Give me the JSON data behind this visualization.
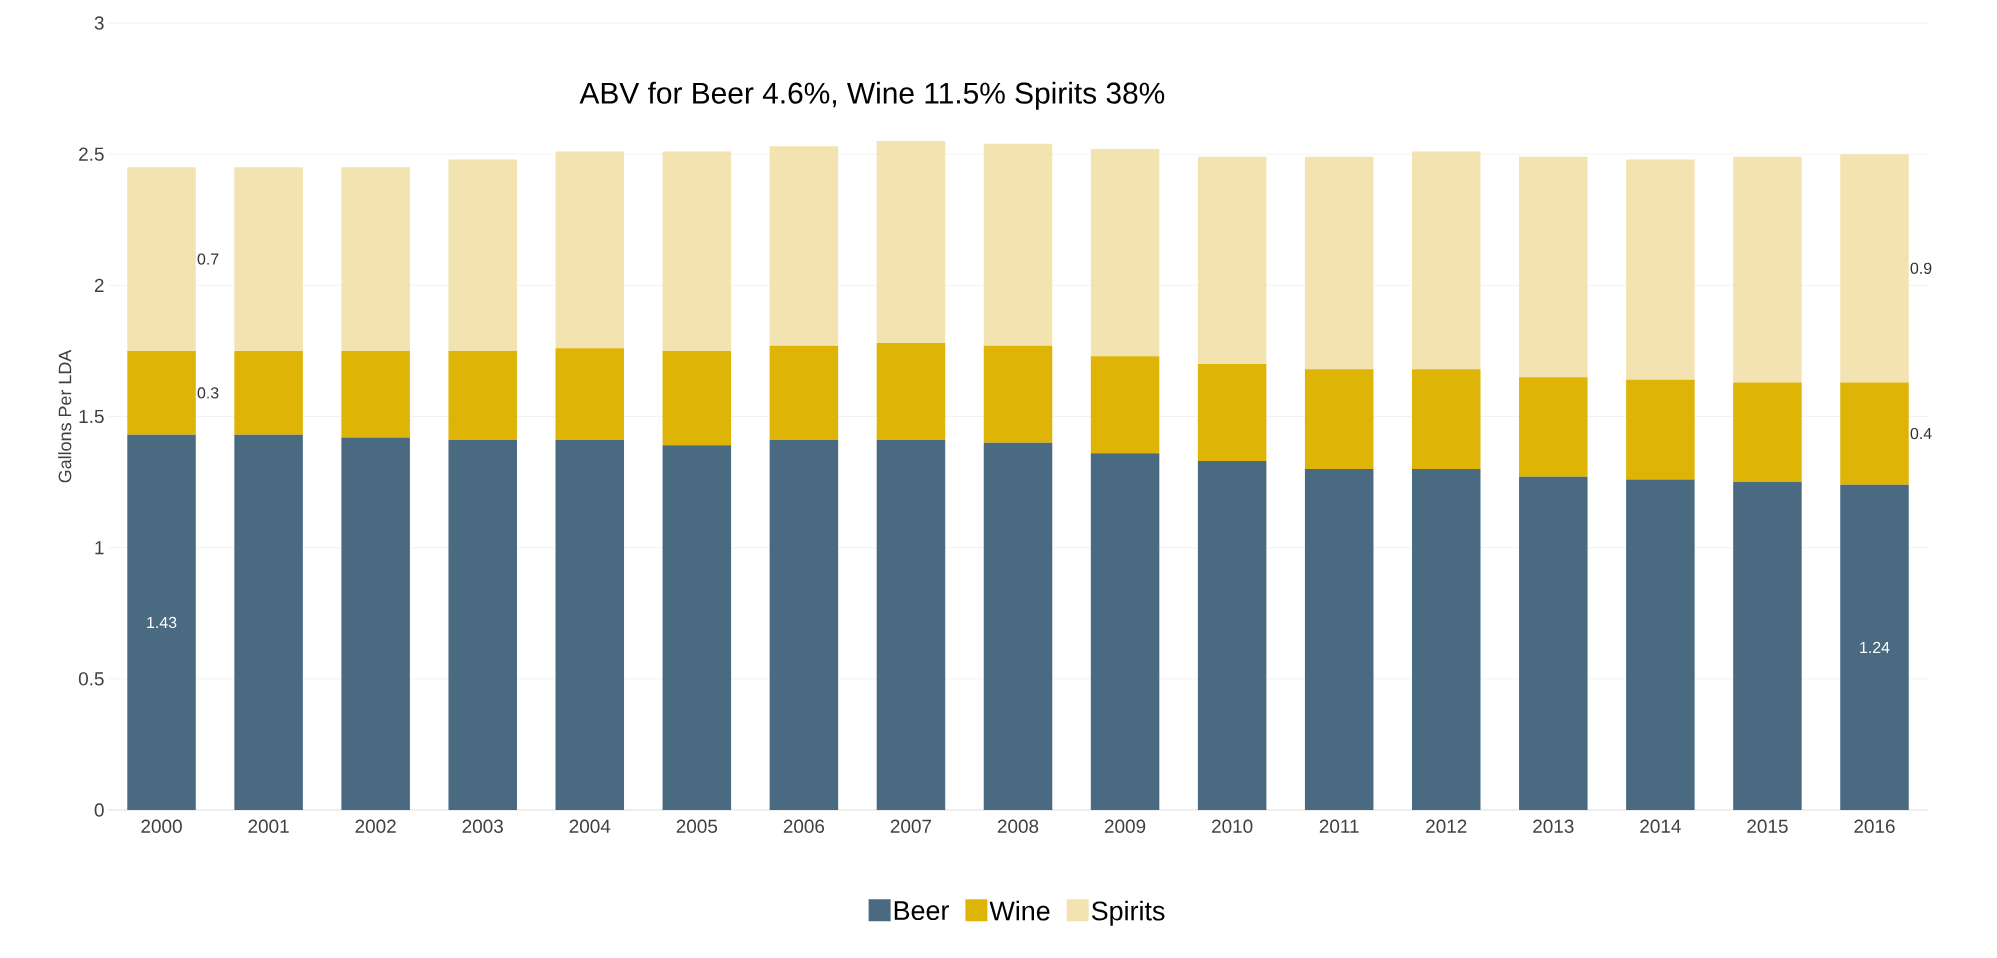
{
  "chart_data": {
    "type": "bar",
    "stacked": true,
    "title": "ABV for Beer 4.6%, Wine 11.5% Spirits 38%",
    "ylabel": "Gallons Per LDA",
    "categories": [
      "2000",
      "2001",
      "2002",
      "2003",
      "2004",
      "2005",
      "2006",
      "2007",
      "2008",
      "2009",
      "2010",
      "2011",
      "2012",
      "2013",
      "2014",
      "2015",
      "2016"
    ],
    "series": [
      {
        "name": "Beer",
        "color": "#4a6a82",
        "values": [
          1.43,
          1.43,
          1.42,
          1.41,
          1.41,
          1.39,
          1.41,
          1.41,
          1.4,
          1.36,
          1.33,
          1.3,
          1.3,
          1.27,
          1.26,
          1.25,
          1.24
        ],
        "value_labels": [
          "1.43",
          null,
          null,
          null,
          null,
          null,
          null,
          null,
          null,
          null,
          null,
          null,
          null,
          null,
          null,
          null,
          "1.24"
        ]
      },
      {
        "name": "Wine",
        "color": "#deb407",
        "values": [
          0.32,
          0.32,
          0.33,
          0.34,
          0.35,
          0.36,
          0.36,
          0.37,
          0.37,
          0.37,
          0.37,
          0.38,
          0.38,
          0.38,
          0.38,
          0.38,
          0.39
        ],
        "value_labels": [
          "0.3",
          null,
          null,
          null,
          null,
          null,
          null,
          null,
          null,
          null,
          null,
          null,
          null,
          null,
          null,
          null,
          "0.4"
        ]
      },
      {
        "name": "Spirits",
        "color": "#f2e3b0",
        "values": [
          0.7,
          0.7,
          0.7,
          0.73,
          0.75,
          0.76,
          0.76,
          0.77,
          0.77,
          0.79,
          0.79,
          0.81,
          0.83,
          0.84,
          0.84,
          0.86,
          0.87
        ],
        "value_labels": [
          "0.7",
          null,
          null,
          null,
          null,
          null,
          null,
          null,
          null,
          null,
          null,
          null,
          null,
          null,
          null,
          null,
          "0.9"
        ]
      }
    ],
    "ylim": [
      0,
      3
    ],
    "yticks": [
      0,
      0.5,
      1,
      1.5,
      2,
      2.5,
      3
    ],
    "grid": "y",
    "legend": "bottom"
  }
}
